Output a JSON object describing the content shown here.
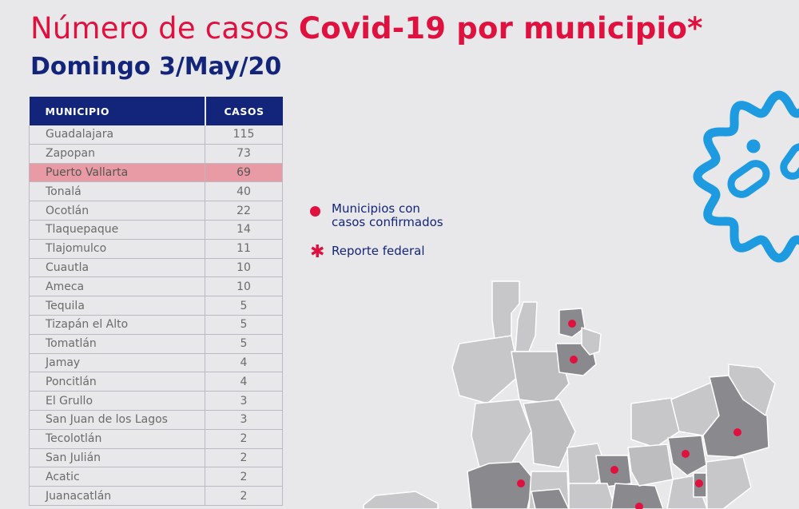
{
  "header": {
    "title_light": "Número de casos",
    "title_bold": "Covid-19 por municipio*",
    "subtitle": "Domingo 3/May/20"
  },
  "table": {
    "col_municipio": "MUNICIPIO",
    "col_casos": "CASOS",
    "highlight_row": "Puerto Vallarta",
    "rows": [
      {
        "municipio": "Guadalajara",
        "casos": "115"
      },
      {
        "municipio": "Zapopan",
        "casos": "73"
      },
      {
        "municipio": "Puerto Vallarta",
        "casos": "69"
      },
      {
        "municipio": "Tonalá",
        "casos": "40"
      },
      {
        "municipio": "Ocotlán",
        "casos": "22"
      },
      {
        "municipio": "Tlaquepaque",
        "casos": "14"
      },
      {
        "municipio": "Tlajomulco",
        "casos": "11"
      },
      {
        "municipio": "Cuautla",
        "casos": "10"
      },
      {
        "municipio": "Ameca",
        "casos": "10"
      },
      {
        "municipio": "Tequila",
        "casos": "5"
      },
      {
        "municipio": "Tizapán el Alto",
        "casos": "5"
      },
      {
        "municipio": "Tomatlán",
        "casos": "5"
      },
      {
        "municipio": "Jamay",
        "casos": "4"
      },
      {
        "municipio": "Poncitlán",
        "casos": "4"
      },
      {
        "municipio": "El Grullo",
        "casos": "3"
      },
      {
        "municipio": "San Juan de los Lagos",
        "casos": "3"
      },
      {
        "municipio": "Tecolotlán",
        "casos": "2"
      },
      {
        "municipio": "San Julián",
        "casos": "2"
      },
      {
        "municipio": "Acatic",
        "casos": "2"
      },
      {
        "municipio": "Juanacatlán",
        "casos": "2"
      }
    ]
  },
  "legend": {
    "confirmed_line1": "Municipios con",
    "confirmed_line2": "casos confirmados",
    "federal": "Reporte federal"
  },
  "colors": {
    "accent_red": "#e0103f",
    "navy": "#13257a",
    "highlight_row": "#e89ba4",
    "virus_blue": "#1e9be0",
    "map_light": "#c7c7c9",
    "map_dark": "#8a8a8e"
  },
  "icons": [
    "virus-icon",
    "map-of-jalisco",
    "red-dot-marker",
    "asterisk-icon"
  ]
}
